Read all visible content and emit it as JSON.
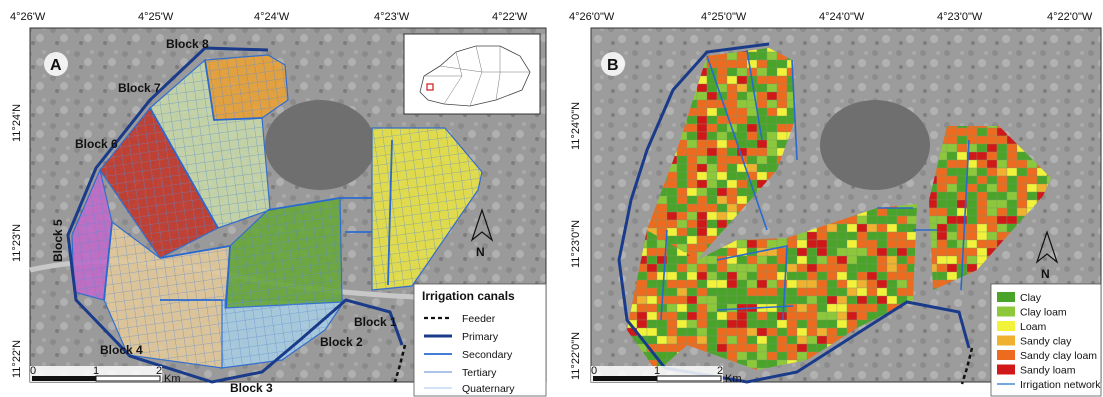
{
  "panel_a": {
    "letter": "A",
    "top_ticks": [
      "4°26'W",
      "4°25'W",
      "4°24'W",
      "4°23'W",
      "4°22'W"
    ],
    "left_ticks": [
      "11°24'N",
      "11°23'N",
      "11°22'N"
    ],
    "blocks": [
      "Block 8",
      "Block 7",
      "Block 6",
      "Block 5",
      "Block 4",
      "Block 3",
      "Block 2",
      "Block 1"
    ],
    "block_colors": [
      "#e8a23a",
      "#c6d6a8",
      "#c23a2e",
      "#c06cc8",
      "#e2c89a",
      "#a8cce0",
      "#6aa83c",
      "#e6e048"
    ],
    "legend": {
      "title": "Irrigation canals",
      "items": [
        "Feeder",
        "Primary",
        "Secondary",
        "Tertiary",
        "Quaternary"
      ]
    },
    "scale": {
      "labels": [
        "0",
        "1",
        "2"
      ],
      "unit": "Km"
    },
    "north": "N"
  },
  "panel_b": {
    "letter": "B",
    "top_ticks": [
      "4°26'0\"W",
      "4°25'0\"W",
      "4°24'0\"W",
      "4°23'0\"W",
      "4°22'0\"W"
    ],
    "left_ticks": [
      "11°24'0\"N",
      "11°23'0\"N",
      "11°22'0\"N"
    ],
    "legend": {
      "items": [
        {
          "label": "Clay",
          "color": "#4aa42a"
        },
        {
          "label": "Clay loam",
          "color": "#8cc83a"
        },
        {
          "label": "Loam",
          "color": "#f2f23a"
        },
        {
          "label": "Sandy clay",
          "color": "#f0b030"
        },
        {
          "label": "Sandy clay loam",
          "color": "#ee6a1e"
        },
        {
          "label": "Sandy loam",
          "color": "#d01818"
        },
        {
          "label": "Irrigation network",
          "color": "#4a8ad8"
        }
      ]
    },
    "scale": {
      "labels": [
        "0",
        "1",
        "2"
      ],
      "unit": "Km"
    },
    "north": "N"
  }
}
